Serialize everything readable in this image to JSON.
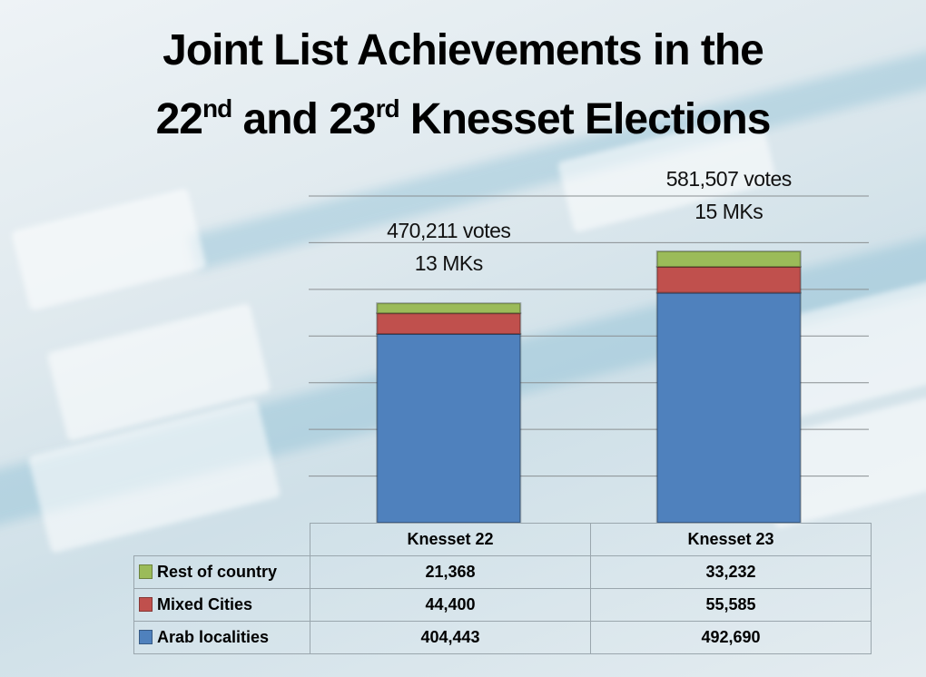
{
  "title": {
    "line1": "Joint List Achievements in the",
    "l2a": "22",
    "l2b": "nd",
    "l2c": " and 23",
    "l2d": "rd",
    "l2e": " Knesset Elections"
  },
  "chart_data": {
    "type": "bar",
    "stacked": true,
    "categories": [
      "Knesset 22",
      "Knesset 23"
    ],
    "series": [
      {
        "name": "Arab localities",
        "color": "#4f81bd",
        "values": [
          404443,
          492690
        ]
      },
      {
        "name": "Mixed Cities",
        "color": "#c0504d",
        "values": [
          44400,
          55585
        ]
      },
      {
        "name": "Rest of country",
        "color": "#9bbb59",
        "values": [
          21368,
          33232
        ]
      }
    ],
    "annotations": [
      {
        "votes": "470,211 votes",
        "mks": "13 MKs"
      },
      {
        "votes": "581,507 votes",
        "mks": "15 MKs"
      }
    ],
    "ylim": [
      0,
      700000
    ],
    "ytick_step": 100000,
    "grid": true,
    "legend": "data-table",
    "table": {
      "rows": [
        {
          "label": "Rest of country",
          "color": "#9bbb59",
          "values": [
            "21,368",
            "33,232"
          ]
        },
        {
          "label": "Mixed Cities",
          "color": "#c0504d",
          "values": [
            "44,400",
            "55,585"
          ]
        },
        {
          "label": "Arab localities",
          "color": "#4f81bd",
          "values": [
            "404,443",
            "492,690"
          ]
        }
      ]
    }
  }
}
